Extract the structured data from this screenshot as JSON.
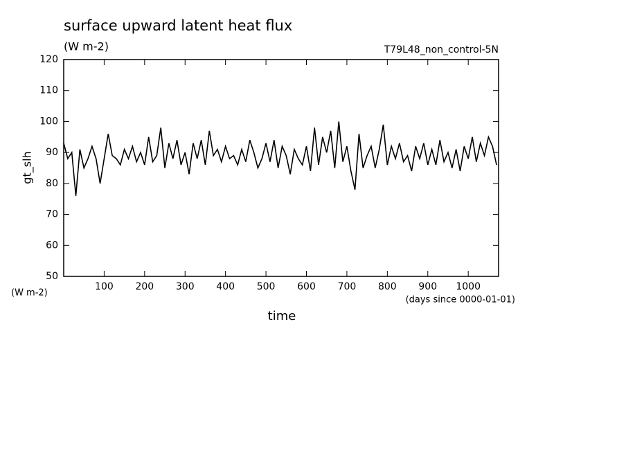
{
  "chart_data": {
    "type": "line",
    "title": "surface upward latent heat flux",
    "subtitle": "(W m-2)",
    "annotation": "T79L48_non_control-5N",
    "y_label": "gt_slh",
    "y_units": "(W m-2)",
    "x_label": "time",
    "x_units": "(days since 0000-01-01)",
    "x": [
      0,
      10,
      20,
      30,
      40,
      50,
      60,
      70,
      80,
      90,
      100,
      110,
      120,
      130,
      140,
      150,
      160,
      170,
      180,
      190,
      200,
      210,
      220,
      230,
      240,
      250,
      260,
      270,
      280,
      290,
      300,
      310,
      320,
      330,
      340,
      350,
      360,
      370,
      380,
      390,
      400,
      410,
      420,
      430,
      440,
      450,
      460,
      470,
      480,
      490,
      500,
      510,
      520,
      530,
      540,
      550,
      560,
      570,
      580,
      590,
      600,
      610,
      620,
      630,
      640,
      650,
      660,
      670,
      680,
      690,
      700,
      710,
      720,
      730,
      740,
      750,
      760,
      770,
      780,
      790,
      800,
      810,
      820,
      830,
      840,
      850,
      860,
      870,
      880,
      890,
      900,
      910,
      920,
      930,
      940,
      950,
      960,
      970,
      980,
      990,
      1000,
      1010,
      1020,
      1030,
      1040,
      1050,
      1060,
      1070
    ],
    "series": [
      {
        "color": "#000000",
        "values": [
          93,
          88,
          90,
          76,
          91,
          85,
          88,
          92,
          88,
          80,
          88,
          96,
          89,
          88,
          86,
          91,
          88,
          92,
          87,
          90,
          86,
          95,
          87,
          89,
          98,
          85,
          93,
          88,
          94,
          86,
          90,
          83,
          93,
          88,
          94,
          86,
          97,
          89,
          91,
          87,
          92,
          88,
          89,
          86,
          91,
          87,
          94,
          90,
          85,
          88,
          93,
          87,
          94,
          85,
          92,
          89,
          83,
          91,
          88,
          86,
          92,
          84,
          98,
          86,
          95,
          90,
          97,
          85,
          100,
          87,
          92,
          84,
          78,
          96,
          85,
          89,
          92,
          85,
          91,
          99,
          86,
          92,
          88,
          93,
          87,
          89,
          84,
          92,
          88,
          93,
          86,
          91,
          86,
          94,
          87,
          90,
          85,
          91,
          84,
          92,
          88,
          95,
          87,
          93,
          89,
          95,
          92,
          86
        ]
      }
    ],
    "xlim": [
      0,
      1075
    ],
    "xticks": [
      100,
      200,
      300,
      400,
      500,
      600,
      700,
      800,
      900,
      1000
    ],
    "ylim": [
      50,
      120
    ],
    "yticks": [
      50,
      60,
      70,
      80,
      90,
      100,
      110,
      120
    ]
  }
}
